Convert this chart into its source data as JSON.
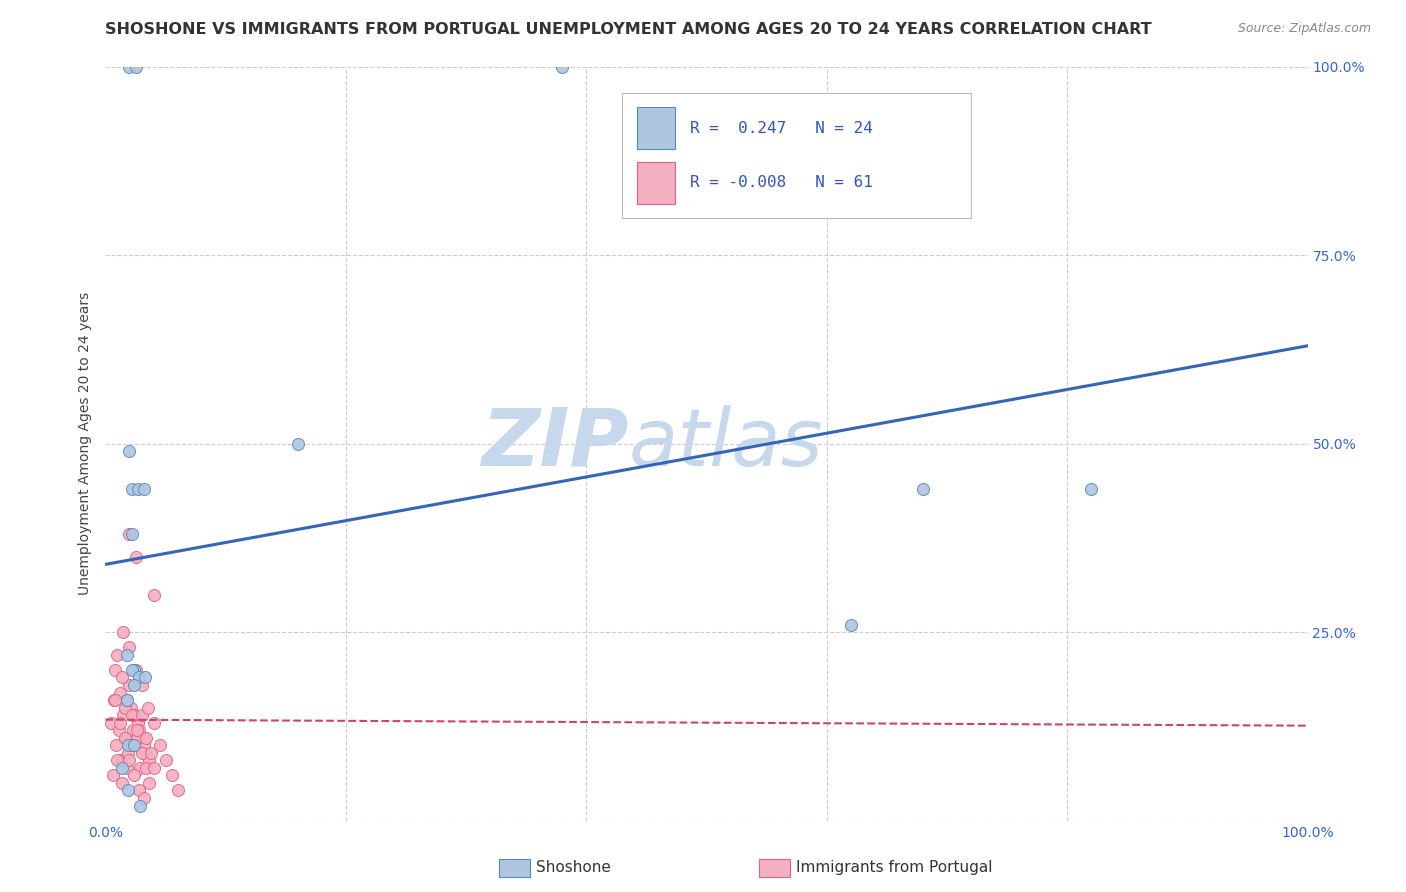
{
  "title": "SHOSHONE VS IMMIGRANTS FROM PORTUGAL UNEMPLOYMENT AMONG AGES 20 TO 24 YEARS CORRELATION CHART",
  "source": "Source: ZipAtlas.com",
  "ylabel": "Unemployment Among Ages 20 to 24 years",
  "xlim": [
    0.0,
    1.0
  ],
  "ylim": [
    0.0,
    1.0
  ],
  "xticks": [
    0.0,
    0.2,
    0.4,
    0.6,
    0.8,
    1.0
  ],
  "yticks": [
    0.0,
    0.25,
    0.5,
    0.75,
    1.0
  ],
  "xtick_labels": [
    "0.0%",
    "",
    "",
    "",
    "",
    "100.0%"
  ],
  "ytick_labels": [
    "",
    "25.0%",
    "50.0%",
    "75.0%",
    "100.0%"
  ],
  "background_color": "#ffffff",
  "grid_color": "#cccccc",
  "shoshone_x": [
    0.02,
    0.025,
    0.38,
    0.02,
    0.022,
    0.027,
    0.032,
    0.022,
    0.68,
    0.82,
    0.62,
    0.018,
    0.024,
    0.16,
    0.022,
    0.028,
    0.033,
    0.024,
    0.018,
    0.019,
    0.024,
    0.014,
    0.019,
    0.029
  ],
  "shoshone_y": [
    1.0,
    1.0,
    1.0,
    0.49,
    0.44,
    0.44,
    0.44,
    0.38,
    0.44,
    0.44,
    0.26,
    0.22,
    0.2,
    0.5,
    0.2,
    0.19,
    0.19,
    0.18,
    0.16,
    0.1,
    0.1,
    0.07,
    0.04,
    0.02
  ],
  "shoshone_color": "#aec6e0",
  "shoshone_edge_color": "#5588bb",
  "shoshone_R": 0.247,
  "shoshone_N": 24,
  "shoshone_line_x": [
    0.0,
    1.0
  ],
  "shoshone_line_y": [
    0.34,
    0.63
  ],
  "portugal_x": [
    0.005,
    0.007,
    0.009,
    0.011,
    0.013,
    0.015,
    0.017,
    0.019,
    0.021,
    0.023,
    0.025,
    0.027,
    0.029,
    0.031,
    0.033,
    0.008,
    0.012,
    0.016,
    0.02,
    0.024,
    0.028,
    0.032,
    0.036,
    0.01,
    0.014,
    0.018,
    0.022,
    0.026,
    0.03,
    0.034,
    0.006,
    0.01,
    0.014,
    0.018,
    0.022,
    0.026,
    0.03,
    0.034,
    0.038,
    0.008,
    0.012,
    0.016,
    0.02,
    0.024,
    0.028,
    0.032,
    0.036,
    0.04,
    0.015,
    0.02,
    0.025,
    0.03,
    0.035,
    0.04,
    0.045,
    0.05,
    0.055,
    0.06,
    0.02,
    0.025,
    0.04
  ],
  "portugal_y": [
    0.13,
    0.16,
    0.1,
    0.12,
    0.08,
    0.14,
    0.11,
    0.09,
    0.15,
    0.12,
    0.1,
    0.13,
    0.07,
    0.11,
    0.09,
    0.2,
    0.17,
    0.15,
    0.18,
    0.14,
    0.12,
    0.1,
    0.08,
    0.22,
    0.19,
    0.16,
    0.14,
    0.11,
    0.09,
    0.07,
    0.06,
    0.08,
    0.05,
    0.07,
    0.1,
    0.12,
    0.14,
    0.11,
    0.09,
    0.16,
    0.13,
    0.11,
    0.08,
    0.06,
    0.04,
    0.03,
    0.05,
    0.07,
    0.25,
    0.23,
    0.2,
    0.18,
    0.15,
    0.13,
    0.1,
    0.08,
    0.06,
    0.04,
    0.38,
    0.35,
    0.3
  ],
  "portugal_color": "#f4b0c0",
  "portugal_edge_color": "#e06080",
  "portugal_R": -0.008,
  "portugal_N": 61,
  "portugal_line_x": [
    0.0,
    1.0
  ],
  "portugal_line_y": [
    0.134,
    0.126
  ],
  "legend_R_color": "#3355bb",
  "marker_size": 75,
  "title_fontsize": 11.5,
  "axis_label_fontsize": 10,
  "tick_fontsize": 10,
  "watermark_text_zip": "ZIP",
  "watermark_text_atlas": "atlas",
  "watermark_color": "#c8d8ec",
  "watermark_fontsize": 58
}
